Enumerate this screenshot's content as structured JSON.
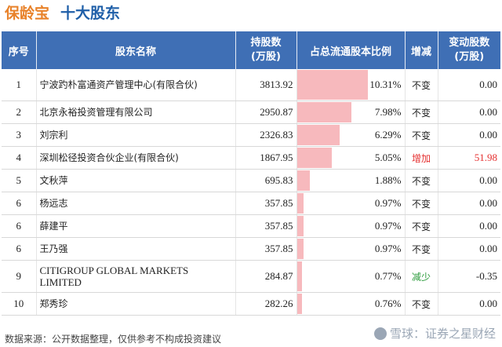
{
  "title": {
    "brand": "保龄宝",
    "subtitle": "十大股东"
  },
  "table": {
    "headers": {
      "index": "序号",
      "name": "股东名称",
      "shares": "持股数\n(万股)",
      "ratio": "占总流通股本比例",
      "change": "增减",
      "delta": "变动股数\n(万股)"
    },
    "rows": [
      {
        "index": "1",
        "name": "宁波趵朴富通资产管理中心(有限合伙)",
        "shares": "3813.92",
        "ratio": "10.31%",
        "ratio_value": 10.31,
        "change": "不变",
        "delta": "0.00"
      },
      {
        "index": "2",
        "name": "北京永裕投资管理有限公司",
        "shares": "2950.87",
        "ratio": "7.98%",
        "ratio_value": 7.98,
        "change": "不变",
        "delta": "0.00"
      },
      {
        "index": "3",
        "name": "刘宗利",
        "shares": "2326.83",
        "ratio": "6.29%",
        "ratio_value": 6.29,
        "change": "不变",
        "delta": "0.00"
      },
      {
        "index": "4",
        "name": "深圳松径投资合伙企业(有限合伙)",
        "shares": "1867.95",
        "ratio": "5.05%",
        "ratio_value": 5.05,
        "change": "增加",
        "delta": "51.98"
      },
      {
        "index": "5",
        "name": "文秋萍",
        "shares": "695.83",
        "ratio": "1.88%",
        "ratio_value": 1.88,
        "change": "不变",
        "delta": "0.00"
      },
      {
        "index": "6",
        "name": "杨远志",
        "shares": "357.85",
        "ratio": "0.97%",
        "ratio_value": 0.97,
        "change": "不变",
        "delta": "0.00"
      },
      {
        "index": "6",
        "name": "薛建平",
        "shares": "357.85",
        "ratio": "0.97%",
        "ratio_value": 0.97,
        "change": "不变",
        "delta": "0.00"
      },
      {
        "index": "6",
        "name": "王乃强",
        "shares": "357.85",
        "ratio": "0.97%",
        "ratio_value": 0.97,
        "change": "不变",
        "delta": "0.00"
      },
      {
        "index": "9",
        "name": "CITIGROUP GLOBAL MARKETS LIMITED",
        "shares": "284.87",
        "ratio": "0.77%",
        "ratio_value": 0.77,
        "change": "减少",
        "delta": "-0.35"
      },
      {
        "index": "10",
        "name": "郑秀珍",
        "shares": "282.26",
        "ratio": "0.76%",
        "ratio_value": 0.76,
        "change": "不变",
        "delta": "0.00"
      }
    ],
    "ratio_max": 10.31
  },
  "footer": {
    "source": "数据来源：公开数据整理，仅供参考不构成投资建议"
  },
  "watermark": {
    "text": "雪球：证券之星财经",
    "icon": "xueqiu-logo-icon"
  },
  "colors": {
    "header_bg": "#3f6fb5",
    "bar_fill": "#f7b9bd",
    "increase": "#e53030",
    "decrease": "#2a9a3a",
    "brand": "#e8822a",
    "subtitle": "#1f5fa8"
  }
}
